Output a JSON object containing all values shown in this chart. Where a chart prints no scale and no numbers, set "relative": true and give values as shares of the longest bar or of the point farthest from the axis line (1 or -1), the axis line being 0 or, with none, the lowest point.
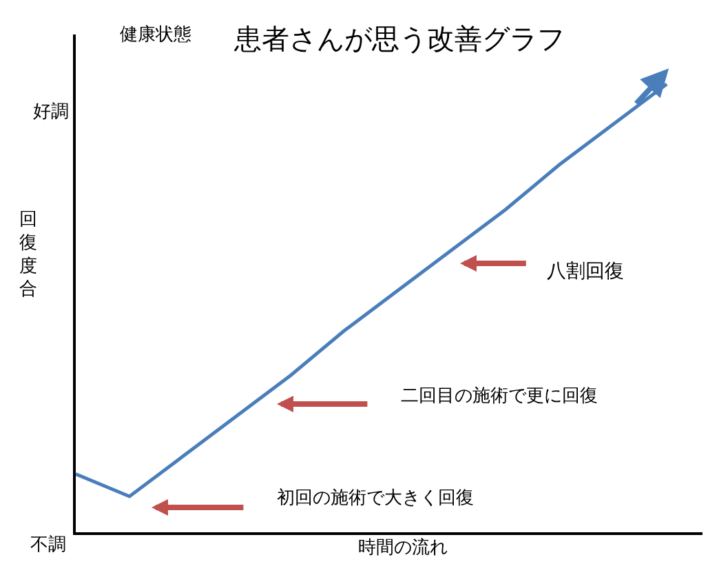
{
  "chart_data": {
    "type": "line",
    "title": "患者さんが思う改善グラフ",
    "xlabel": "時間の流れ",
    "ylabel": "健康状態",
    "relative": true,
    "categories": [
      null,
      null,
      null,
      null,
      null,
      null,
      null,
      null,
      null,
      null,
      null,
      null
    ],
    "series": [
      {
        "color": "#4a7ebb",
        "values": [
          0.13,
          0.08,
          0.17,
          0.26,
          0.35,
          0.45,
          0.54,
          0.63,
          0.72,
          0.82,
          0.91,
          1.0
        ]
      }
    ],
    "annotations": [
      "八割回復",
      "二回目の施術で更に回復",
      "初回の施術で大きく回復",
      "回復度合",
      "好調",
      "不調"
    ],
    "marker": "none",
    "line_style": "solid",
    "legend": false
  }
}
